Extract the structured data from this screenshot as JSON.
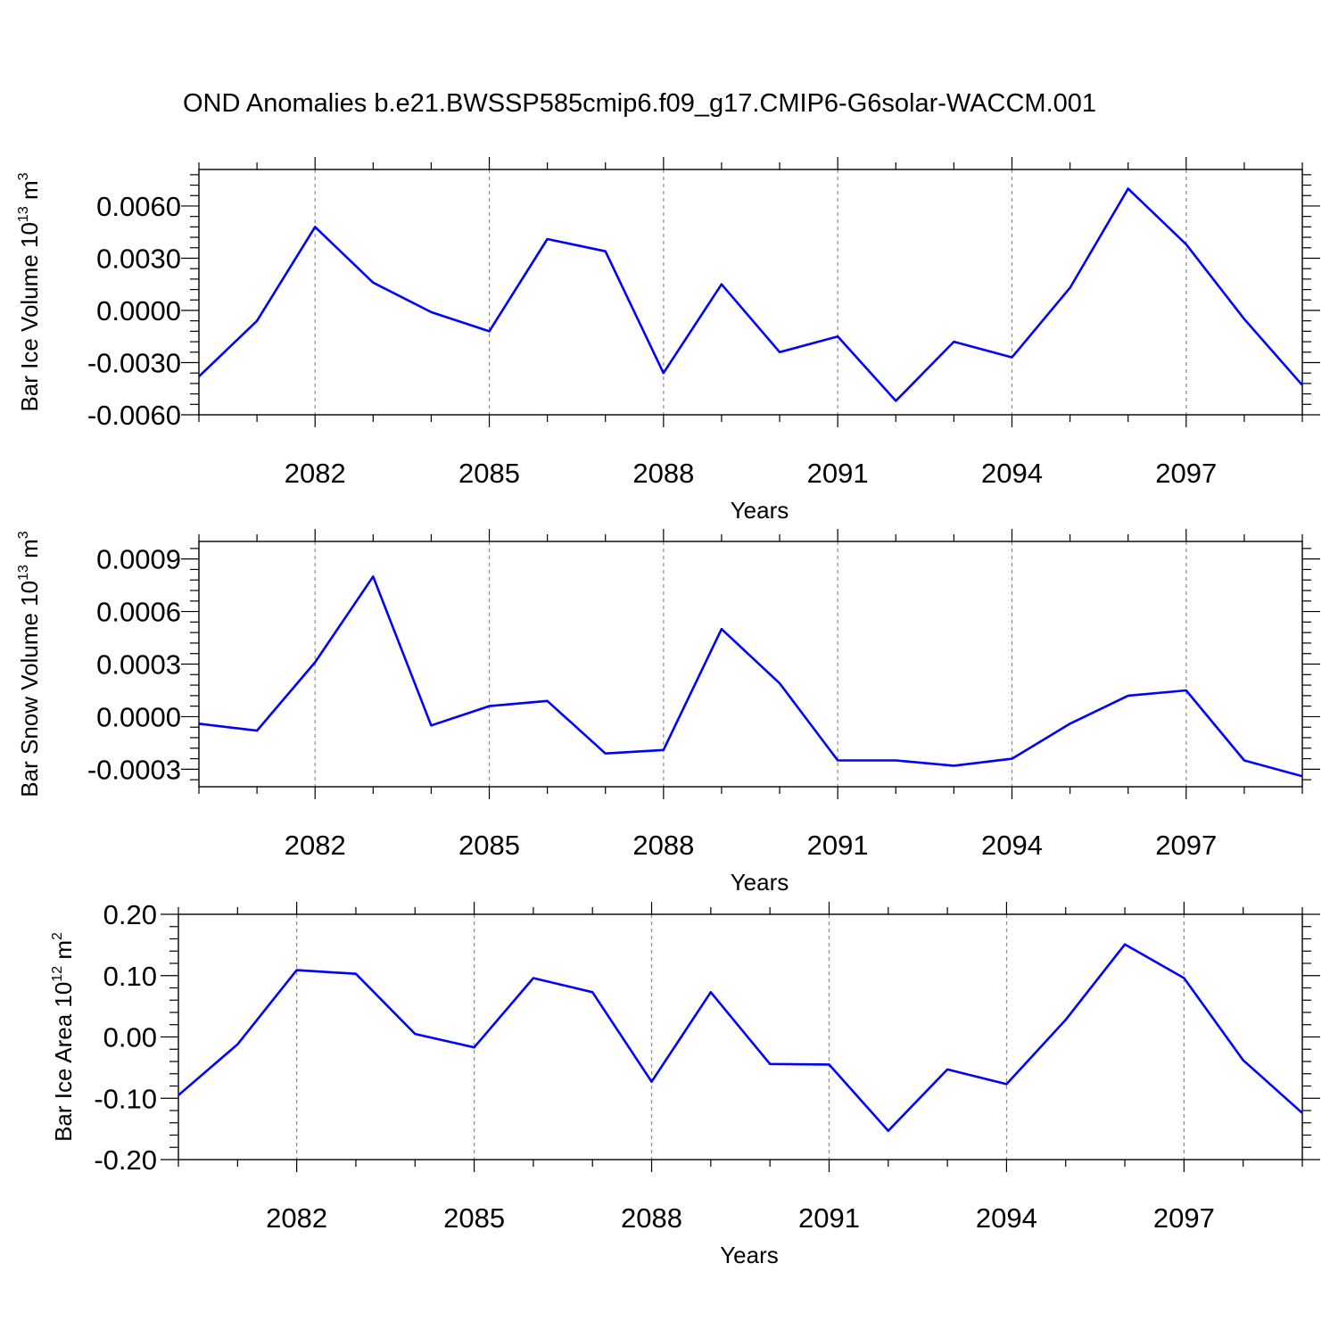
{
  "title": "OND Anomalies b.e21.BWSSP585cmip6.f09_g17.CMIP6-G6solar-WACCM.001",
  "colors": {
    "line": "#0000ff",
    "axis": "#000000",
    "grid": "#8c8c8c"
  },
  "chart_data": [
    {
      "type": "line",
      "title": "",
      "xlabel": "Years",
      "ylabel": {
        "text": "Bar Ice Volume 10",
        "exp": "13",
        "unit": " m",
        "unit_exp": "3"
      },
      "xlim": [
        2080,
        2099
      ],
      "ylim": [
        -0.006,
        0.0081
      ],
      "xticks": [
        "2082",
        "2085",
        "2088",
        "2091",
        "2094",
        "2097"
      ],
      "yticks": [
        "0.0060",
        "0.0030",
        "0.0000",
        "-0.0030",
        "-0.0060"
      ],
      "grid": "vertical dashed at major x ticks",
      "x": [
        2080,
        2081,
        2082,
        2083,
        2084,
        2085,
        2086,
        2087,
        2088,
        2089,
        2090,
        2091,
        2092,
        2093,
        2094,
        2095,
        2096,
        2097,
        2098,
        2099
      ],
      "series": [
        {
          "values": [
            -0.0038,
            -0.0006,
            0.0048,
            0.0016,
            -0.0001,
            -0.0012,
            0.0041,
            0.0034,
            -0.0036,
            0.0015,
            -0.0024,
            -0.0015,
            -0.0052,
            -0.0018,
            -0.0027,
            0.0013,
            0.007,
            0.0038,
            -0.0005,
            -0.0043
          ]
        }
      ]
    },
    {
      "type": "line",
      "title": "",
      "xlabel": "Years",
      "ylabel": {
        "text": "Bar Snow Volume 10",
        "exp": "13",
        "unit": " m",
        "unit_exp": "3"
      },
      "xlim": [
        2080,
        2099
      ],
      "ylim": [
        -0.0004,
        0.001
      ],
      "xticks": [
        "2082",
        "2085",
        "2088",
        "2091",
        "2094",
        "2097"
      ],
      "yticks": [
        "0.0009",
        "0.0006",
        "0.0003",
        "0.0000",
        "-0.0003"
      ],
      "grid": "vertical dashed at major x ticks",
      "x": [
        2080,
        2081,
        2082,
        2083,
        2084,
        2085,
        2086,
        2087,
        2088,
        2089,
        2090,
        2091,
        2092,
        2093,
        2094,
        2095,
        2096,
        2097,
        2098,
        2099
      ],
      "series": [
        {
          "values": [
            -4e-05,
            -8e-05,
            0.00031,
            0.0008,
            -5e-05,
            6e-05,
            9e-05,
            -0.00021,
            -0.00019,
            0.0005,
            0.00019,
            -0.00025,
            -0.00025,
            -0.00028,
            -0.00024,
            -4e-05,
            0.00012,
            0.00015,
            -0.00025,
            -0.00034
          ]
        }
      ]
    },
    {
      "type": "line",
      "title": "",
      "xlabel": "Years",
      "ylabel": {
        "text": "Bar Ice Area 10",
        "exp": "12",
        "unit": " m",
        "unit_exp": "2"
      },
      "xlim": [
        2080,
        2099
      ],
      "ylim": [
        -0.2,
        0.2
      ],
      "xticks": [
        "2082",
        "2085",
        "2088",
        "2091",
        "2094",
        "2097"
      ],
      "yticks": [
        "0.20",
        "0.10",
        "0.00",
        "-0.10",
        "-0.20"
      ],
      "grid": "vertical dashed at major x ticks",
      "x": [
        2080,
        2081,
        2082,
        2083,
        2084,
        2085,
        2086,
        2087,
        2088,
        2089,
        2090,
        2091,
        2092,
        2093,
        2094,
        2095,
        2096,
        2097,
        2098,
        2099
      ],
      "series": [
        {
          "values": [
            -0.095,
            -0.012,
            0.109,
            0.103,
            0.005,
            -0.017,
            0.096,
            0.073,
            -0.073,
            0.073,
            -0.044,
            -0.045,
            -0.153,
            -0.053,
            -0.077,
            0.028,
            0.151,
            0.096,
            -0.038,
            -0.124
          ]
        }
      ]
    }
  ]
}
